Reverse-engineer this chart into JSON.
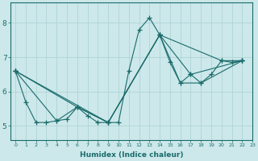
{
  "xlabel": "Humidex (Indice chaleur)",
  "bg_color": "#cce8ea",
  "grid_color": "#b0d4d8",
  "line_color": "#1a6b6b",
  "xlim": [
    -0.5,
    23
  ],
  "ylim": [
    4.6,
    8.6
  ],
  "yticks": [
    5,
    6,
    7,
    8
  ],
  "xticks": [
    0,
    1,
    2,
    3,
    4,
    5,
    6,
    7,
    8,
    9,
    10,
    11,
    12,
    13,
    14,
    15,
    16,
    17,
    18,
    19,
    20,
    21,
    22,
    23
  ],
  "series": [
    {
      "x": [
        0,
        1,
        2,
        3,
        4,
        5,
        6,
        7,
        8,
        9,
        10,
        11,
        12,
        13,
        14,
        15,
        16,
        17,
        18,
        19,
        20,
        21,
        22
      ],
      "y": [
        6.6,
        5.7,
        5.1,
        5.1,
        5.15,
        5.2,
        5.55,
        5.3,
        5.1,
        5.1,
        5.1,
        6.6,
        7.8,
        8.15,
        7.65,
        6.85,
        6.25,
        6.5,
        6.25,
        6.5,
        6.9,
        6.85,
        6.9
      ]
    },
    {
      "x": [
        0,
        4,
        6,
        9,
        14,
        20,
        22
      ],
      "y": [
        6.6,
        5.15,
        5.55,
        5.1,
        7.65,
        6.9,
        6.9
      ]
    },
    {
      "x": [
        0,
        6,
        9,
        14,
        17,
        22
      ],
      "y": [
        6.6,
        5.55,
        5.1,
        7.65,
        6.5,
        6.9
      ]
    },
    {
      "x": [
        0,
        9,
        14,
        16,
        18,
        22
      ],
      "y": [
        6.6,
        5.1,
        7.65,
        6.25,
        6.25,
        6.9
      ]
    }
  ]
}
